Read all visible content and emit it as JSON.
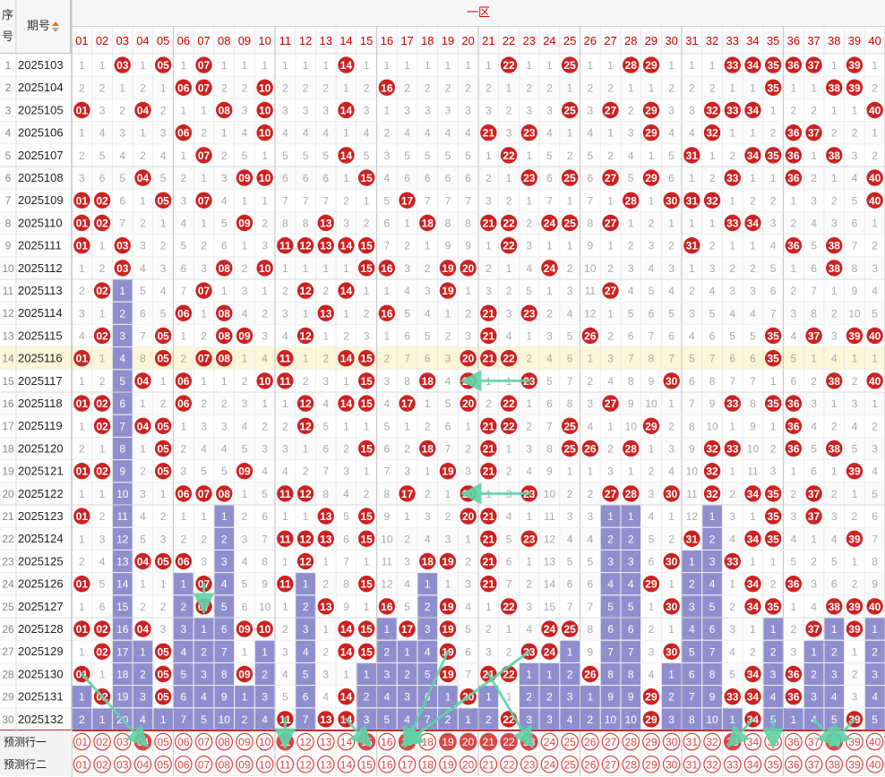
{
  "header": {
    "seq_label": "序号",
    "issue_label": "期号",
    "zone_label": "一区"
  },
  "colors": {
    "hit": "#cc2222",
    "streak": "#8f8fcf",
    "highlight_row": "#fdf6d8",
    "arrow": "#5fd3a6",
    "circle": "#d84848"
  },
  "columns": [
    "01",
    "02",
    "03",
    "04",
    "05",
    "06",
    "07",
    "08",
    "09",
    "10",
    "11",
    "12",
    "13",
    "14",
    "15",
    "16",
    "17",
    "18",
    "19",
    "20",
    "21",
    "22",
    "23",
    "24",
    "25",
    "26",
    "27",
    "28",
    "29",
    "30",
    "31",
    "32",
    "33",
    "34",
    "35",
    "36",
    "37",
    "38",
    "39",
    "40"
  ],
  "highlight_row": 14,
  "rows": [
    {
      "seq": "1",
      "issue": "2025103",
      "hits": [
        3,
        5,
        7,
        14,
        22,
        25,
        28,
        29,
        33,
        34,
        35,
        36,
        37,
        39
      ]
    },
    {
      "seq": "2",
      "issue": "2025104",
      "hits": [
        6,
        7,
        10,
        16,
        35,
        38,
        39
      ]
    },
    {
      "seq": "3",
      "issue": "2025105",
      "hits": [
        1,
        4,
        8,
        10,
        14,
        25,
        27,
        29,
        32,
        33,
        34,
        40
      ]
    },
    {
      "seq": "4",
      "issue": "2025106",
      "hits": [
        6,
        10,
        21,
        23,
        29,
        32,
        36,
        37
      ]
    },
    {
      "seq": "5",
      "issue": "2025107",
      "hits": [
        7,
        14,
        22,
        31,
        34,
        35,
        36,
        38
      ]
    },
    {
      "seq": "6",
      "issue": "2025108",
      "hits": [
        4,
        9,
        10,
        15,
        23,
        25,
        27,
        29,
        33,
        36,
        40
      ]
    },
    {
      "seq": "7",
      "issue": "2025109",
      "hits": [
        1,
        2,
        5,
        7,
        17,
        28,
        30,
        31,
        32,
        40
      ]
    },
    {
      "seq": "8",
      "issue": "2025110",
      "hits": [
        1,
        2,
        9,
        13,
        18,
        21,
        22,
        24,
        25,
        27,
        33,
        34
      ]
    },
    {
      "seq": "9",
      "issue": "2025111",
      "hits": [
        1,
        3,
        11,
        12,
        13,
        14,
        15,
        22,
        31,
        36,
        38
      ]
    },
    {
      "seq": "10",
      "issue": "2025112",
      "hits": [
        3,
        8,
        10,
        15,
        16,
        19,
        20,
        24,
        38
      ]
    },
    {
      "seq": "11",
      "issue": "2025113",
      "hits": [
        2,
        7,
        12,
        14,
        19,
        27
      ]
    },
    {
      "seq": "12",
      "issue": "2025114",
      "hits": [
        6,
        8,
        13,
        16,
        21,
        23
      ]
    },
    {
      "seq": "13",
      "issue": "2025115",
      "hits": [
        2,
        5,
        8,
        9,
        12,
        21,
        26,
        35,
        37,
        39,
        40
      ]
    },
    {
      "seq": "14",
      "issue": "2025116",
      "hits": [
        1,
        5,
        7,
        8,
        11,
        14,
        15,
        20,
        21,
        22,
        35
      ]
    },
    {
      "seq": "15",
      "issue": "2025117",
      "hits": [
        4,
        6,
        10,
        11,
        15,
        18,
        20,
        23,
        30,
        38,
        40
      ]
    },
    {
      "seq": "16",
      "issue": "2025118",
      "hits": [
        1,
        2,
        6,
        12,
        14,
        15,
        17,
        20,
        22,
        27,
        33,
        35,
        36
      ]
    },
    {
      "seq": "17",
      "issue": "2025119",
      "hits": [
        2,
        4,
        5,
        12,
        21,
        22,
        25,
        29,
        36
      ]
    },
    {
      "seq": "18",
      "issue": "2025120",
      "hits": [
        5,
        15,
        18,
        21,
        25,
        26,
        28,
        32,
        33,
        36,
        38
      ]
    },
    {
      "seq": "19",
      "issue": "2025121",
      "hits": [
        1,
        2,
        5,
        9,
        19,
        21,
        32,
        39
      ]
    },
    {
      "seq": "20",
      "issue": "2025122",
      "hits": [
        6,
        7,
        8,
        11,
        12,
        17,
        20,
        23,
        27,
        28,
        30,
        32,
        34,
        35,
        37
      ]
    },
    {
      "seq": "21",
      "issue": "2025123",
      "hits": [
        1,
        13,
        15,
        20,
        21,
        35,
        37
      ]
    },
    {
      "seq": "22",
      "issue": "2025124",
      "hits": [
        11,
        12,
        13,
        15,
        21,
        23,
        31,
        34,
        35,
        39
      ]
    },
    {
      "seq": "23",
      "issue": "2025125",
      "hits": [
        4,
        5,
        6,
        12,
        18,
        19,
        21,
        30,
        33
      ]
    },
    {
      "seq": "24",
      "issue": "2025126",
      "hits": [
        1,
        7,
        11,
        15,
        21,
        29,
        34,
        36
      ]
    },
    {
      "seq": "25",
      "issue": "2025127",
      "hits": [
        7,
        13,
        16,
        19,
        22,
        30,
        34,
        35,
        38,
        39,
        40
      ]
    },
    {
      "seq": "26",
      "issue": "2025128",
      "hits": [
        1,
        2,
        4,
        9,
        10,
        14,
        15,
        17,
        19,
        24,
        25,
        37,
        39
      ]
    },
    {
      "seq": "27",
      "issue": "2025129",
      "hits": [
        2,
        5,
        14,
        15,
        19,
        23,
        24,
        30
      ]
    },
    {
      "seq": "28",
      "issue": "2025130",
      "hits": [
        1,
        5,
        9,
        19,
        21,
        22,
        26,
        34,
        36
      ]
    },
    {
      "seq": "29",
      "issue": "2025131",
      "hits": [
        2,
        5,
        14,
        20,
        29,
        33,
        34,
        36
      ]
    },
    {
      "seq": "30",
      "issue": "2025132",
      "hits": [
        11,
        13,
        14,
        22,
        29,
        34,
        39
      ]
    }
  ],
  "predict_rows": [
    {
      "label": "预测行一",
      "filled": [
        4,
        11,
        15,
        17,
        19,
        20,
        21,
        22,
        23,
        33,
        38
      ]
    },
    {
      "label": "预测行二",
      "filled": []
    }
  ]
}
